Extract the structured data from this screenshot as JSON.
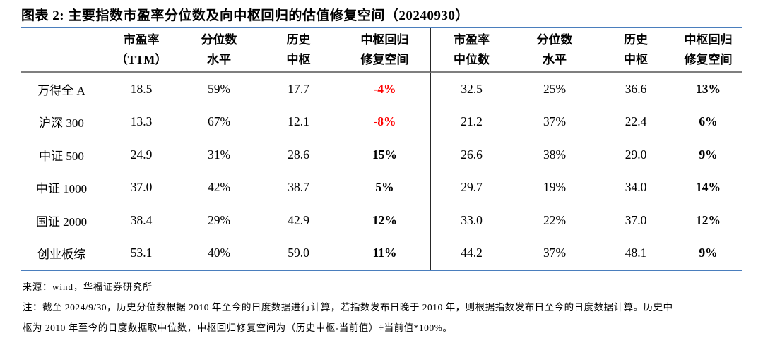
{
  "title": "图表 2: 主要指数市盈率分位数及向中枢回归的估值修复空间（20240930）",
  "table": {
    "headers": {
      "left": [
        {
          "l1": "市盈率",
          "l2": "（TTM）"
        },
        {
          "l1": "分位数",
          "l2": "水平"
        },
        {
          "l1": "历史",
          "l2": "中枢"
        },
        {
          "l1": "中枢回归",
          "l2": "修复空间"
        }
      ],
      "right": [
        {
          "l1": "市盈率",
          "l2": "中位数"
        },
        {
          "l1": "分位数",
          "l2": "水平"
        },
        {
          "l1": "历史",
          "l2": "中枢"
        },
        {
          "l1": "中枢回归",
          "l2": "修复空间"
        }
      ]
    },
    "rows": [
      {
        "name": "万得全 A",
        "pe_ttm": "18.5",
        "pct": "59%",
        "center": "17.7",
        "recovery": "-4%",
        "pe_med": "32.5",
        "pct_r": "25%",
        "center_r": "36.6",
        "recovery_r": "13%"
      },
      {
        "name": "沪深 300",
        "pe_ttm": "13.3",
        "pct": "67%",
        "center": "12.1",
        "recovery": "-8%",
        "pe_med": "21.2",
        "pct_r": "37%",
        "center_r": "22.4",
        "recovery_r": "6%"
      },
      {
        "name": "中证 500",
        "pe_ttm": "24.9",
        "pct": "31%",
        "center": "28.6",
        "recovery": "15%",
        "pe_med": "26.6",
        "pct_r": "38%",
        "center_r": "29.0",
        "recovery_r": "9%"
      },
      {
        "name": "中证 1000",
        "pe_ttm": "37.0",
        "pct": "42%",
        "center": "38.7",
        "recovery": "5%",
        "pe_med": "29.7",
        "pct_r": "19%",
        "center_r": "34.0",
        "recovery_r": "14%"
      },
      {
        "name": "国证 2000",
        "pe_ttm": "38.4",
        "pct": "29%",
        "center": "42.9",
        "recovery": "12%",
        "pe_med": "33.0",
        "pct_r": "22%",
        "center_r": "37.0",
        "recovery_r": "12%"
      },
      {
        "name": "创业板综",
        "pe_ttm": "53.1",
        "pct": "40%",
        "center": "59.0",
        "recovery": "11%",
        "pe_med": "44.2",
        "pct_r": "37%",
        "center_r": "48.1",
        "recovery_r": "9%"
      }
    ]
  },
  "footer": {
    "source": "来源：wind，华福证券研究所",
    "note_line1": "注：截至 2024/9/30，历史分位数根据 2010 年至今的日度数据进行计算，若指数发布日晚于 2010 年，则根据指数发布日至今的日度数据计算。历史中",
    "note_line2": "枢为 2010 年至今的日度数据取中位数，中枢回归修复空间为（历史中枢-当前值）÷当前值*100%。"
  },
  "colors": {
    "accent_border": "#4a7ebd",
    "header_separator": "#7f7f7f",
    "negative_value": "#fe0000"
  },
  "chart_data": {
    "type": "table",
    "title": "主要指数市盈率分位数及向中枢回归的估值修复空间（20240930）",
    "columns": [
      "指数",
      "市盈率（TTM）",
      "分位数水平",
      "历史中枢",
      "中枢回归修复空间",
      "市盈率中位数",
      "分位数水平(中位数)",
      "历史中枢(中位数)",
      "中枢回归修复空间(中位数)"
    ],
    "rows": [
      [
        "万得全A",
        18.5,
        "59%",
        17.7,
        "-4%",
        32.5,
        "25%",
        36.6,
        "13%"
      ],
      [
        "沪深300",
        13.3,
        "67%",
        12.1,
        "-8%",
        21.2,
        "37%",
        22.4,
        "6%"
      ],
      [
        "中证500",
        24.9,
        "31%",
        28.6,
        "15%",
        26.6,
        "38%",
        29.0,
        "9%"
      ],
      [
        "中证1000",
        37.0,
        "42%",
        38.7,
        "5%",
        29.7,
        "19%",
        34.0,
        "14%"
      ],
      [
        "国证2000",
        38.4,
        "29%",
        42.9,
        "12%",
        33.0,
        "22%",
        37.0,
        "12%"
      ],
      [
        "创业板综",
        53.1,
        "40%",
        59.0,
        "11%",
        44.2,
        "37%",
        48.1,
        "9%"
      ]
    ]
  }
}
